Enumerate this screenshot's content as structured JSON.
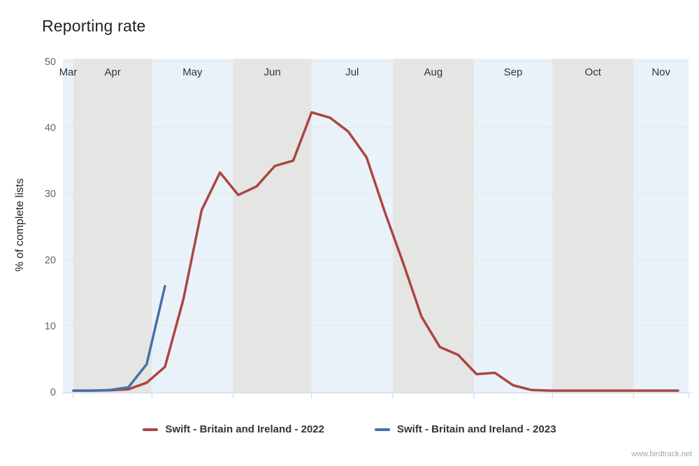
{
  "title": "Reporting rate",
  "watermark": "www.birdtrack.net",
  "colors": {
    "series_2022": "#AA4643",
    "series_2023": "#4572A7",
    "band_gray": "#e5e5e3",
    "band_blue": "#eaf2f9",
    "grid": "#e6e6e6",
    "axis": "#ccd6eb",
    "y_label": "#666666",
    "month_label": "#333333",
    "title_color": "#222222",
    "legend_text": "#333333",
    "watermark_color": "#a6a6a6"
  },
  "chart_data": {
    "type": "line",
    "title": "Reporting rate",
    "ylabel": "% of complete lists",
    "ylim": [
      0,
      50
    ],
    "y_ticks": [
      0,
      10,
      20,
      30,
      40,
      50
    ],
    "grid": true,
    "legend_position": "bottom",
    "x_unit": "weekly values, season 28 Mar - 22 Nov, day offsets from 28 Mar",
    "season_length_days": 239,
    "months": [
      {
        "label": "Mar",
        "start_day": 0,
        "end_day": 4,
        "shade": "blue"
      },
      {
        "label": "Apr",
        "start_day": 4,
        "end_day": 34,
        "shade": "gray"
      },
      {
        "label": "May",
        "start_day": 34,
        "end_day": 65,
        "shade": "blue"
      },
      {
        "label": "Jun",
        "start_day": 65,
        "end_day": 95,
        "shade": "gray"
      },
      {
        "label": "Jul",
        "start_day": 95,
        "end_day": 126,
        "shade": "blue"
      },
      {
        "label": "Aug",
        "start_day": 126,
        "end_day": 157,
        "shade": "gray"
      },
      {
        "label": "Sep",
        "start_day": 157,
        "end_day": 187,
        "shade": "blue"
      },
      {
        "label": "Oct",
        "start_day": 187,
        "end_day": 218,
        "shade": "gray"
      },
      {
        "label": "Nov",
        "start_day": 218,
        "end_day": 239,
        "shade": "blue"
      }
    ],
    "series": [
      {
        "name": "Swift - Britain and Ireland - 2022",
        "color": "#AA4643",
        "points": [
          {
            "date": "Apr 1",
            "day": 4,
            "value": 0.2
          },
          {
            "date": "Apr 8",
            "day": 11,
            "value": 0.2
          },
          {
            "date": "Apr 15",
            "day": 18,
            "value": 0.25
          },
          {
            "date": "Apr 22",
            "day": 25,
            "value": 0.4
          },
          {
            "date": "Apr 29",
            "day": 32,
            "value": 1.4
          },
          {
            "date": "May 6",
            "day": 39,
            "value": 3.8
          },
          {
            "date": "May 13",
            "day": 46,
            "value": 14.0
          },
          {
            "date": "May 20",
            "day": 53,
            "value": 27.5
          },
          {
            "date": "May 27",
            "day": 60,
            "value": 33.2
          },
          {
            "date": "Jun 3",
            "day": 67,
            "value": 29.8
          },
          {
            "date": "Jun 10",
            "day": 74,
            "value": 31.1
          },
          {
            "date": "Jun 17",
            "day": 81,
            "value": 34.2
          },
          {
            "date": "Jun 24",
            "day": 88,
            "value": 35.0
          },
          {
            "date": "Jul 1",
            "day": 95,
            "value": 42.3
          },
          {
            "date": "Jul 8",
            "day": 102,
            "value": 41.5
          },
          {
            "date": "Jul 15",
            "day": 109,
            "value": 39.4
          },
          {
            "date": "Jul 22",
            "day": 116,
            "value": 35.5
          },
          {
            "date": "Jul 29",
            "day": 123,
            "value": 27.2
          },
          {
            "date": "Aug 5",
            "day": 130,
            "value": 19.5
          },
          {
            "date": "Aug 12",
            "day": 137,
            "value": 11.4
          },
          {
            "date": "Aug 19",
            "day": 144,
            "value": 6.8
          },
          {
            "date": "Aug 26",
            "day": 151,
            "value": 5.6
          },
          {
            "date": "Sep 2",
            "day": 158,
            "value": 2.7
          },
          {
            "date": "Sep 9",
            "day": 165,
            "value": 2.9
          },
          {
            "date": "Sep 16",
            "day": 172,
            "value": 1.0
          },
          {
            "date": "Sep 23",
            "day": 179,
            "value": 0.3
          },
          {
            "date": "Sep 30",
            "day": 186,
            "value": 0.2
          },
          {
            "date": "Oct 7",
            "day": 193,
            "value": 0.2
          },
          {
            "date": "Oct 14",
            "day": 200,
            "value": 0.2
          },
          {
            "date": "Oct 21",
            "day": 207,
            "value": 0.2
          },
          {
            "date": "Oct 28",
            "day": 214,
            "value": 0.2
          },
          {
            "date": "Nov 4",
            "day": 221,
            "value": 0.2
          },
          {
            "date": "Nov 11",
            "day": 228,
            "value": 0.2
          },
          {
            "date": "Nov 18",
            "day": 235,
            "value": 0.2
          }
        ]
      },
      {
        "name": "Swift - Britain and Ireland - 2023",
        "color": "#4572A7",
        "points": [
          {
            "date": "Apr 1",
            "day": 4,
            "value": 0.2
          },
          {
            "date": "Apr 8",
            "day": 11,
            "value": 0.2
          },
          {
            "date": "Apr 15",
            "day": 18,
            "value": 0.3
          },
          {
            "date": "Apr 22",
            "day": 25,
            "value": 0.7
          },
          {
            "date": "Apr 29",
            "day": 32,
            "value": 4.2
          },
          {
            "date": "May 6",
            "day": 39,
            "value": 16.0
          }
        ]
      }
    ]
  }
}
